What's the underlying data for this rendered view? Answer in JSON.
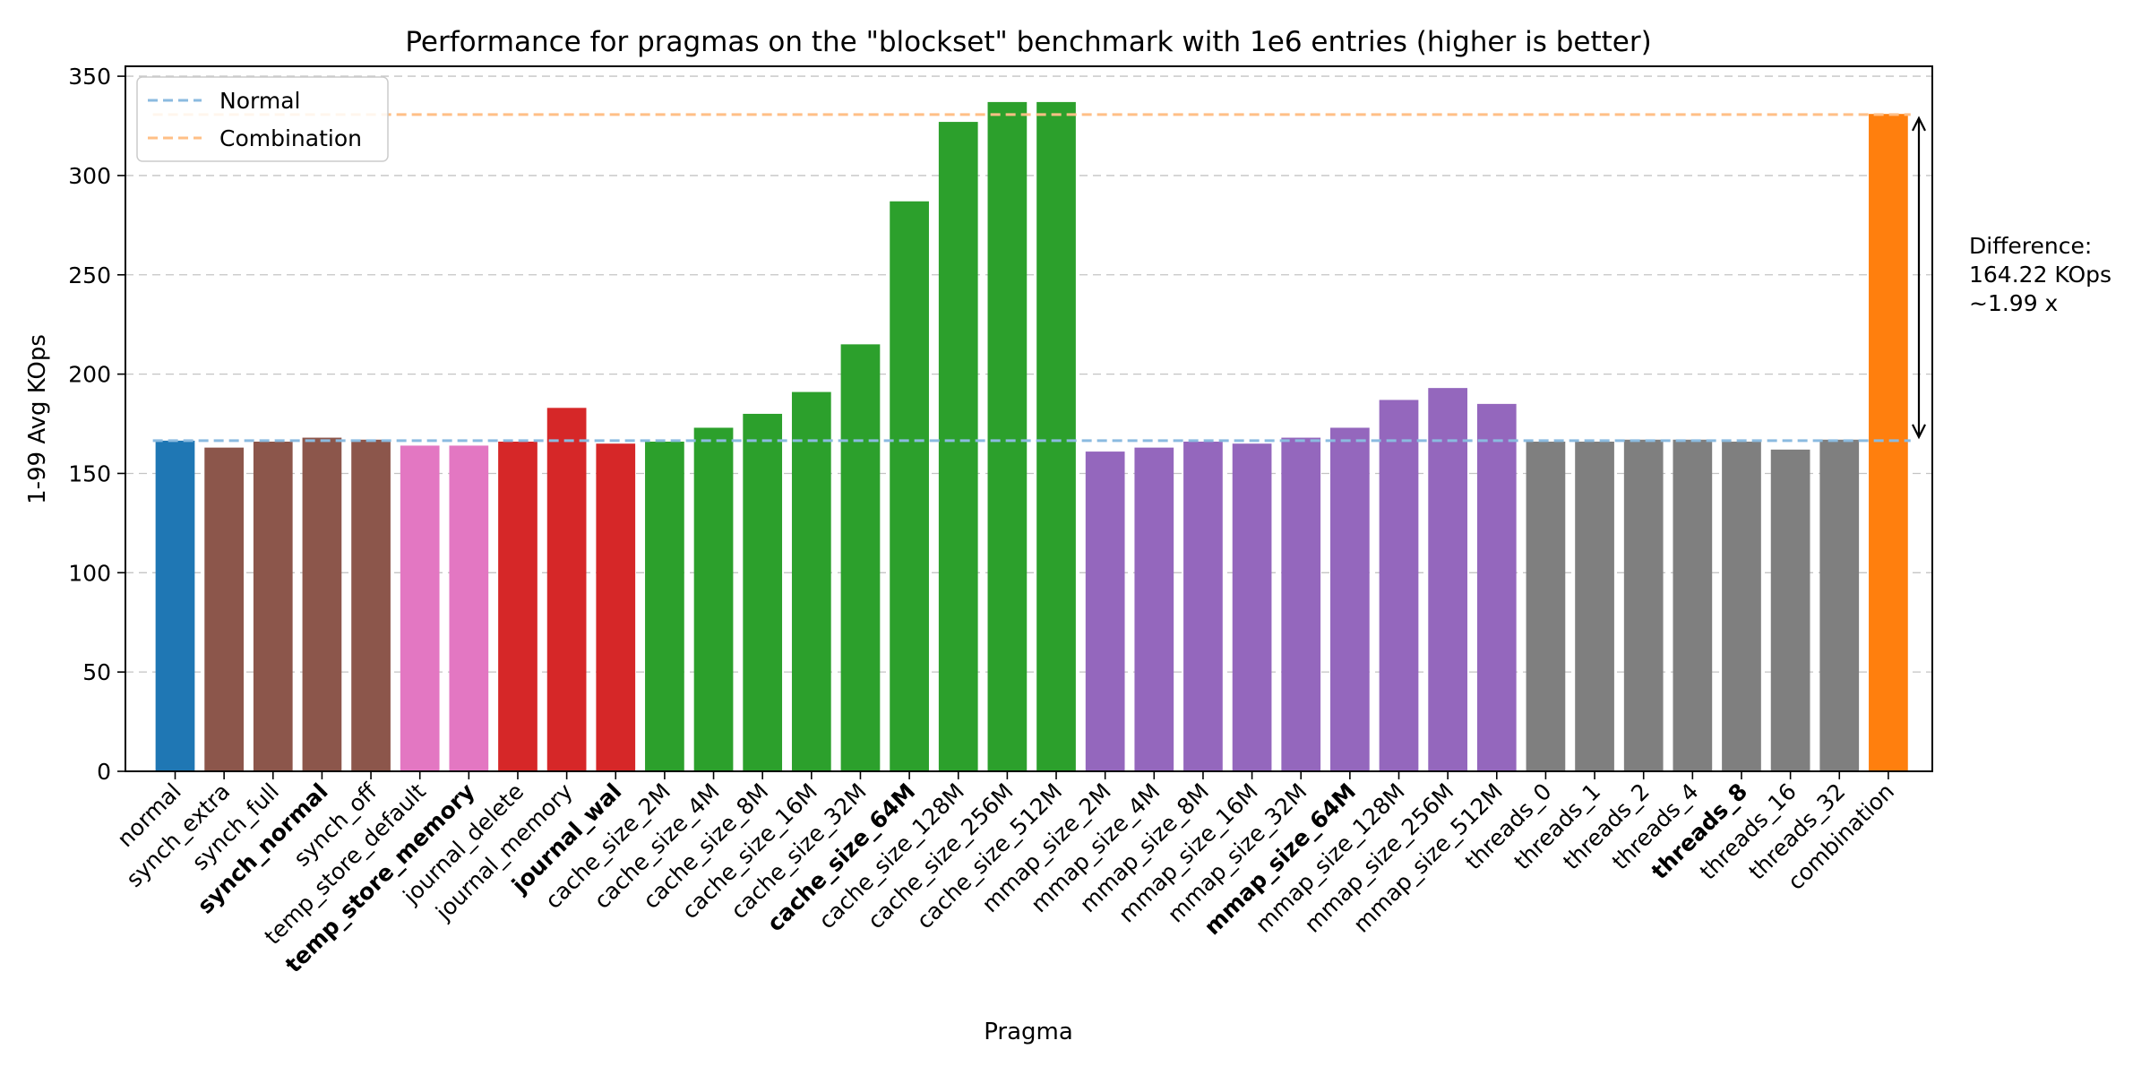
{
  "chart_data": {
    "type": "bar",
    "title": "Performance for pragmas on the \"blockset\" benchmark with 1e6 entries (higher is better)",
    "xlabel": "Pragma",
    "ylabel": "1-99 Avg KOps",
    "ylim": [
      0,
      355
    ],
    "yticks": [
      0,
      50,
      100,
      150,
      200,
      250,
      300,
      350
    ],
    "grid": "horizontal dashed",
    "legend_position": "top-left",
    "legend": [
      {
        "label": "Normal",
        "color": "#8bbbe0",
        "style": "dashed"
      },
      {
        "label": "Combination",
        "color": "#ffbf86",
        "style": "dashed"
      }
    ],
    "reference_lines": {
      "normal": 166.5,
      "combination": 330.7
    },
    "annotation": {
      "lines": [
        "Difference:",
        "164.22 KOps",
        "~1.99 x"
      ]
    },
    "categories": [
      {
        "label": "normal",
        "value": 166.5,
        "color": "#1f77b4",
        "bold": false
      },
      {
        "label": "synch_extra",
        "value": 163,
        "color": "#8c564b",
        "bold": false
      },
      {
        "label": "synch_full",
        "value": 166,
        "color": "#8c564b",
        "bold": false
      },
      {
        "label": "synch_normal",
        "value": 168,
        "color": "#8c564b",
        "bold": true
      },
      {
        "label": "synch_off",
        "value": 167,
        "color": "#8c564b",
        "bold": false
      },
      {
        "label": "temp_store_default",
        "value": 164,
        "color": "#e377c2",
        "bold": false
      },
      {
        "label": "temp_store_memory",
        "value": 164,
        "color": "#e377c2",
        "bold": true
      },
      {
        "label": "journal_delete",
        "value": 166,
        "color": "#d62728",
        "bold": false
      },
      {
        "label": "journal_memory",
        "value": 183,
        "color": "#d62728",
        "bold": false
      },
      {
        "label": "journal_wal",
        "value": 165,
        "color": "#d62728",
        "bold": true
      },
      {
        "label": "cache_size_2M",
        "value": 166,
        "color": "#2ca02c",
        "bold": false
      },
      {
        "label": "cache_size_4M",
        "value": 173,
        "color": "#2ca02c",
        "bold": false
      },
      {
        "label": "cache_size_8M",
        "value": 180,
        "color": "#2ca02c",
        "bold": false
      },
      {
        "label": "cache_size_16M",
        "value": 191,
        "color": "#2ca02c",
        "bold": false
      },
      {
        "label": "cache_size_32M",
        "value": 215,
        "color": "#2ca02c",
        "bold": false
      },
      {
        "label": "cache_size_64M",
        "value": 287,
        "color": "#2ca02c",
        "bold": true
      },
      {
        "label": "cache_size_128M",
        "value": 327,
        "color": "#2ca02c",
        "bold": false
      },
      {
        "label": "cache_size_256M",
        "value": 337,
        "color": "#2ca02c",
        "bold": false
      },
      {
        "label": "cache_size_512M",
        "value": 337,
        "color": "#2ca02c",
        "bold": false
      },
      {
        "label": "mmap_size_2M",
        "value": 161,
        "color": "#9467bd",
        "bold": false
      },
      {
        "label": "mmap_size_4M",
        "value": 163,
        "color": "#9467bd",
        "bold": false
      },
      {
        "label": "mmap_size_8M",
        "value": 166,
        "color": "#9467bd",
        "bold": false
      },
      {
        "label": "mmap_size_16M",
        "value": 165,
        "color": "#9467bd",
        "bold": false
      },
      {
        "label": "mmap_size_32M",
        "value": 168,
        "color": "#9467bd",
        "bold": false
      },
      {
        "label": "mmap_size_64M",
        "value": 173,
        "color": "#9467bd",
        "bold": true
      },
      {
        "label": "mmap_size_128M",
        "value": 187,
        "color": "#9467bd",
        "bold": false
      },
      {
        "label": "mmap_size_256M",
        "value": 193,
        "color": "#9467bd",
        "bold": false
      },
      {
        "label": "mmap_size_512M",
        "value": 185,
        "color": "#9467bd",
        "bold": false
      },
      {
        "label": "threads_0",
        "value": 166,
        "color": "#7f7f7f",
        "bold": false
      },
      {
        "label": "threads_1",
        "value": 166,
        "color": "#7f7f7f",
        "bold": false
      },
      {
        "label": "threads_2",
        "value": 167,
        "color": "#7f7f7f",
        "bold": false
      },
      {
        "label": "threads_4",
        "value": 167,
        "color": "#7f7f7f",
        "bold": false
      },
      {
        "label": "threads_8",
        "value": 166,
        "color": "#7f7f7f",
        "bold": true
      },
      {
        "label": "threads_16",
        "value": 162,
        "color": "#7f7f7f",
        "bold": false
      },
      {
        "label": "threads_32",
        "value": 167,
        "color": "#7f7f7f",
        "bold": false
      },
      {
        "label": "combination",
        "value": 331,
        "color": "#ff7f0e",
        "bold": false
      }
    ]
  }
}
